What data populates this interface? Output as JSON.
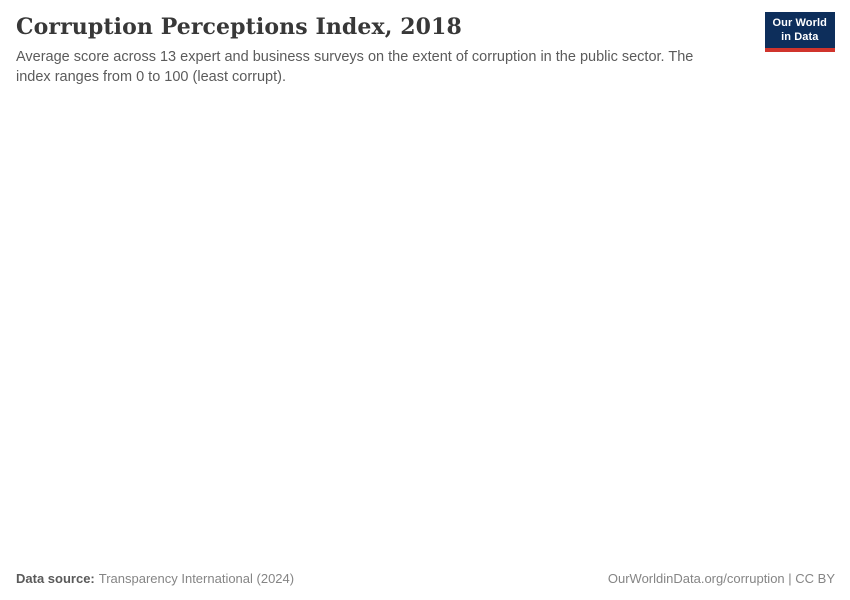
{
  "header": {
    "title": "Corruption Perceptions Index, 2018",
    "subtitle": "Average score across 13 expert and business surveys on the extent of corruption in the public sector. The index ranges from 0 to 100 (least corrupt)."
  },
  "logo": {
    "line1": "Our World",
    "line2": "in Data",
    "bg_color": "#0d2e5b",
    "accent_color": "#d0342c"
  },
  "footer": {
    "source_label": "Data source:",
    "source_value": "Transparency International (2024)",
    "citation": "OurWorldinData.org/corruption | CC BY"
  },
  "chart_data": {
    "type": "map",
    "title": "Corruption Perceptions Index, 2018",
    "subtitle": "Average score across 13 expert and business surveys on the extent of corruption in the public sector. The index ranges from 0 to 100 (least corrupt).",
    "value_range": [
      0,
      100
    ],
    "series": [],
    "note": "The plot area of the screenshot is entirely blank — no map, axes, legend, or data points are rendered."
  }
}
